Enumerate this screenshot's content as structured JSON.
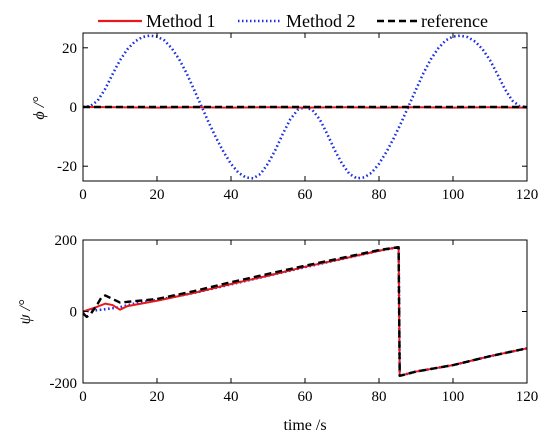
{
  "legend": {
    "location": "top, outside axes",
    "entries": [
      {
        "label": "Method 1",
        "color": "#e8191c",
        "dash": "solid"
      },
      {
        "label": "Method 2",
        "color": "#1f2fe0",
        "dash": "dotted"
      },
      {
        "label": "reference",
        "color": "#000000",
        "dash": "dashed"
      }
    ]
  },
  "chart_data": [
    {
      "type": "line",
      "title": "",
      "xlabel": "",
      "ylabel": "ϕ /°",
      "xlim": [
        0,
        120
      ],
      "ylim": [
        -25,
        25
      ],
      "xticks": [
        0,
        20,
        40,
        60,
        80,
        100,
        120
      ],
      "yticks": [
        -20,
        0,
        20
      ],
      "grid": false,
      "series": [
        {
          "name": "Method 1",
          "color": "#e8191c",
          "dash": "solid",
          "x": [
            0,
            10,
            20,
            30,
            40,
            50,
            60,
            70,
            80,
            90,
            100,
            110,
            120
          ],
          "y": [
            0,
            -0.1,
            -0.2,
            -0.1,
            -0.2,
            -0.1,
            -0.2,
            -0.1,
            -0.2,
            -0.1,
            -0.2,
            -0.1,
            -0.2
          ]
        },
        {
          "name": "Method 2",
          "color": "#1f2fe0",
          "dash": "dotted",
          "x": [
            0,
            2,
            4,
            6,
            8,
            10,
            12,
            14,
            16,
            18,
            20,
            22,
            24,
            26,
            28,
            30,
            32,
            34,
            36,
            38,
            40,
            42,
            44,
            46,
            48,
            50,
            52,
            54,
            56,
            58,
            60,
            62,
            64,
            66,
            68,
            70,
            72,
            74,
            76,
            78,
            80,
            82,
            84,
            86,
            88,
            90,
            92,
            94,
            96,
            98,
            100,
            102,
            104,
            106,
            108,
            110,
            112,
            114,
            116,
            118,
            120
          ],
          "y": [
            0,
            0.3,
            2.2,
            6.1,
            11.1,
            15.8,
            19.5,
            22.1,
            23.6,
            24.1,
            23.8,
            22.5,
            19.8,
            16.1,
            11.4,
            5.9,
            0.3,
            -5.3,
            -10.5,
            -15.2,
            -19.2,
            -22.2,
            -23.8,
            -24.1,
            -22.6,
            -19.1,
            -14.5,
            -9.1,
            -4.2,
            -1.0,
            0,
            -1.0,
            -4.2,
            -9.1,
            -14.5,
            -19.1,
            -22.6,
            -24.1,
            -23.8,
            -22.2,
            -19.2,
            -15.2,
            -10.5,
            -5.3,
            0.3,
            5.9,
            11.4,
            16.1,
            19.8,
            22.5,
            23.8,
            24.1,
            23.6,
            22.1,
            19.5,
            15.8,
            11.1,
            6.1,
            2.2,
            0.3,
            0
          ]
        },
        {
          "name": "reference",
          "color": "#000000",
          "dash": "dashed",
          "x": [
            0,
            20,
            40,
            60,
            80,
            100,
            120
          ],
          "y": [
            0,
            0,
            0,
            0,
            0,
            0,
            0
          ]
        }
      ]
    },
    {
      "type": "line",
      "title": "",
      "xlabel": "time /s",
      "ylabel": "ψ /°",
      "xlim": [
        0,
        120
      ],
      "ylim": [
        -200,
        200
      ],
      "xticks": [
        0,
        20,
        40,
        60,
        80,
        100,
        120
      ],
      "yticks": [
        -200,
        0,
        200
      ],
      "grid": false,
      "series": [
        {
          "name": "Method 1",
          "color": "#e8191c",
          "dash": "solid",
          "x": [
            0,
            3,
            6,
            8,
            10,
            12,
            20,
            30,
            40,
            50,
            60,
            70,
            80,
            85.3,
            85.6,
            90,
            100,
            110,
            120
          ],
          "y": [
            0,
            10,
            22,
            18,
            5,
            15,
            30,
            52,
            77,
            100,
            125,
            147,
            170,
            180,
            -180,
            -168,
            -150,
            -125,
            -103
          ]
        },
        {
          "name": "Method 2",
          "color": "#1f2fe0",
          "dash": "dotted",
          "x": [
            0,
            5,
            10,
            15,
            20,
            30,
            40,
            50,
            60,
            70,
            80,
            85.3,
            85.6,
            90,
            100,
            110,
            120
          ],
          "y": [
            0,
            5,
            12,
            25,
            32,
            52,
            76,
            100,
            124,
            147,
            170,
            180,
            -180,
            -168,
            -150,
            -125,
            -103
          ]
        },
        {
          "name": "reference",
          "color": "#000000",
          "dash": "dashed",
          "x": [
            0,
            1,
            2,
            4,
            5,
            6,
            10,
            20,
            30,
            40,
            50,
            60,
            70,
            80,
            85.3,
            85.6,
            90,
            100,
            110,
            120
          ],
          "y": [
            -5,
            -15,
            -8,
            22,
            40,
            45,
            25,
            35,
            57,
            82,
            105,
            128,
            150,
            172,
            180,
            -180,
            -168,
            -150,
            -125,
            -103
          ]
        }
      ]
    }
  ]
}
